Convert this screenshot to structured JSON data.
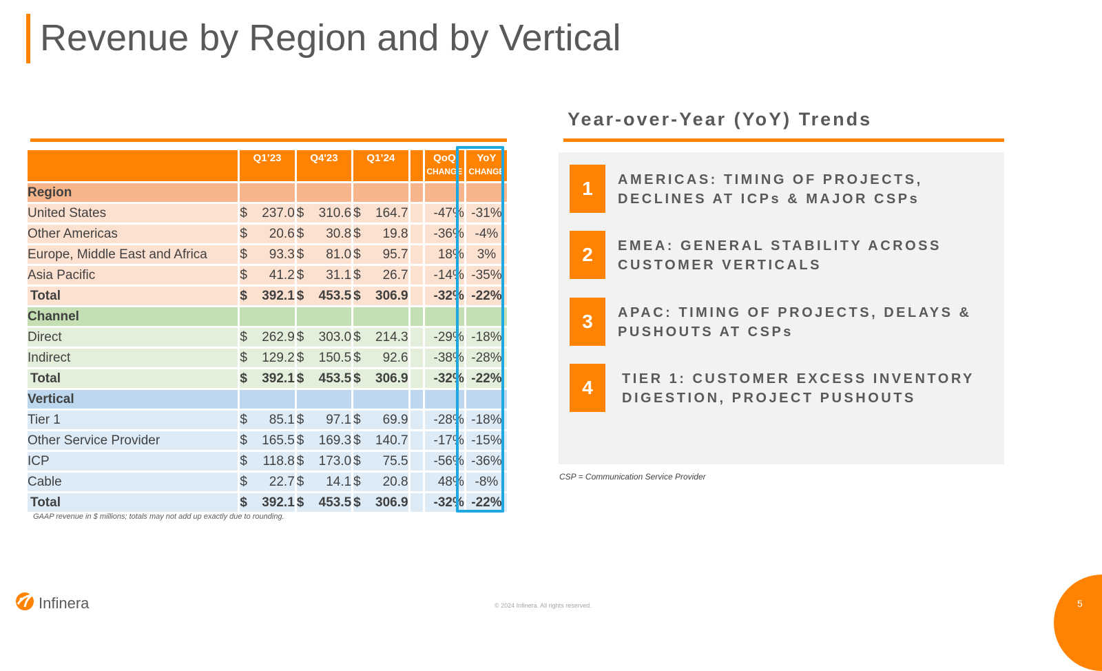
{
  "title": "Revenue by Region and by Vertical",
  "table": {
    "headers": {
      "q1_23": "Q1’23",
      "q4_23": "Q4'23",
      "q1_24": "Q1’24",
      "qoq": "QoQ",
      "qoq_sub": "CHANGE",
      "yoy": "YoY",
      "yoy_sub": "CHANGE"
    },
    "region": {
      "heading": "Region",
      "rows": [
        {
          "label": "United States",
          "q1_23_cur": "$",
          "q1_23": "237.0",
          "q4_23_cur": "$",
          "q4_23": "310.6",
          "q1_24_cur": "$",
          "q1_24": "164.7",
          "qoq": "-47%",
          "yoy": "-31%"
        },
        {
          "label": "Other Americas",
          "q1_23_cur": "$",
          "q1_23": "20.6",
          "q4_23_cur": "$",
          "q4_23": "30.8",
          "q1_24_cur": "$",
          "q1_24": "19.8",
          "qoq": "-36%",
          "yoy": "-4%"
        },
        {
          "label": "Europe, Middle East and Africa",
          "q1_23_cur": "$",
          "q1_23": "93.3",
          "q4_23_cur": "$",
          "q4_23": "81.0",
          "q1_24_cur": "$",
          "q1_24": "95.7",
          "qoq": "18%",
          "yoy": "3%"
        },
        {
          "label": "Asia Pacific",
          "q1_23_cur": "$",
          "q1_23": "41.2",
          "q4_23_cur": "$",
          "q4_23": "31.1",
          "q1_24_cur": "$",
          "q1_24": "26.7",
          "qoq": "-14%",
          "yoy": "-35%"
        }
      ],
      "total": {
        "label": "Total",
        "q1_23_cur": "$",
        "q1_23": "392.1",
        "q4_23_cur": "$",
        "q4_23": "453.5",
        "q1_24_cur": "$",
        "q1_24": "306.9",
        "qoq": "-32%",
        "yoy": "-22%"
      }
    },
    "channel": {
      "heading": "Channel",
      "rows": [
        {
          "label": "Direct",
          "q1_23_cur": "$",
          "q1_23": "262.9",
          "q4_23_cur": "$",
          "q4_23": "303.0",
          "q1_24_cur": "$",
          "q1_24": "214.3",
          "qoq": "-29%",
          "yoy": "-18%"
        },
        {
          "label": "Indirect",
          "q1_23_cur": "$",
          "q1_23": "129.2",
          "q4_23_cur": "$",
          "q4_23": "150.5",
          "q1_24_cur": "$",
          "q1_24": "92.6",
          "qoq": "-38%",
          "yoy": "-28%"
        }
      ],
      "total": {
        "label": "Total",
        "q1_23_cur": "$",
        "q1_23": "392.1",
        "q4_23_cur": "$",
        "q4_23": "453.5",
        "q1_24_cur": "$",
        "q1_24": "306.9",
        "qoq": "-32%",
        "yoy": "-22%"
      }
    },
    "vertical": {
      "heading": "Vertical",
      "rows": [
        {
          "label": "Tier 1",
          "q1_23_cur": "$",
          "q1_23": "85.1",
          "q4_23_cur": "$",
          "q4_23": "97.1",
          "q1_24_cur": "$",
          "q1_24": "69.9",
          "qoq": "-28%",
          "yoy": "-18%"
        },
        {
          "label": "Other Service Provider",
          "q1_23_cur": "$",
          "q1_23": "165.5",
          "q4_23_cur": "$",
          "q4_23": "169.3",
          "q1_24_cur": "$",
          "q1_24": "140.7",
          "qoq": "-17%",
          "yoy": "-15%"
        },
        {
          "label": "ICP",
          "q1_23_cur": "$",
          "q1_23": "118.8",
          "q4_23_cur": "$",
          "q4_23": "173.0",
          "q1_24_cur": "$",
          "q1_24": "75.5",
          "qoq": "-56%",
          "yoy": "-36%"
        },
        {
          "label": "Cable",
          "q1_23_cur": "$",
          "q1_23": "22.7",
          "q4_23_cur": "$",
          "q4_23": "14.1",
          "q1_24_cur": "$",
          "q1_24": "20.8",
          "qoq": "48%",
          "yoy": "-8%"
        }
      ],
      "total": {
        "label": "Total",
        "q1_23_cur": "$",
        "q1_23": "392.1",
        "q4_23_cur": "$",
        "q4_23": "453.5",
        "q1_24_cur": "$",
        "q1_24": "306.9",
        "qoq": "-32%",
        "yoy": "-22%"
      }
    },
    "footnote": "GAAP revenue in $ millions; totals may not add up exactly due to rounding."
  },
  "trends": {
    "title": "Year-over-Year (YoY) Trends",
    "items": [
      {
        "num": "1",
        "text": "AMERICAS: TIMING OF PROJECTS, DECLINES AT ICPs & MAJOR CSPs"
      },
      {
        "num": "2",
        "text": "EMEA: GENERAL STABILITY ACROSS CUSTOMER VERTICALS"
      },
      {
        "num": "3",
        "text": "APAC: TIMING OF PROJECTS, DELAYS & PUSHOUTS AT CSPs"
      },
      {
        "num": "4",
        "text": "TIER 1: CUSTOMER EXCESS INVENTORY DIGESTION, PROJECT PUSHOUTS"
      }
    ],
    "footnote": "CSP = Communication Service Provider"
  },
  "footer": {
    "logo_name": "Infinera",
    "logo_icon": "infinera-logo-icon",
    "copyright": "© 2024 Infinera. All rights reserved.",
    "page_number": "5"
  },
  "colors": {
    "accent": "#FF8200",
    "yoy_highlight": "#1EA7E0",
    "region_heading": "#F7B58B",
    "region_row": "#FCE0D0",
    "channel_heading": "#C5DFB4",
    "channel_row": "#E3EFDA",
    "vertical_heading": "#BDD7EE",
    "vertical_row": "#DDEBF7",
    "panel_bg": "#F2F2F2"
  }
}
